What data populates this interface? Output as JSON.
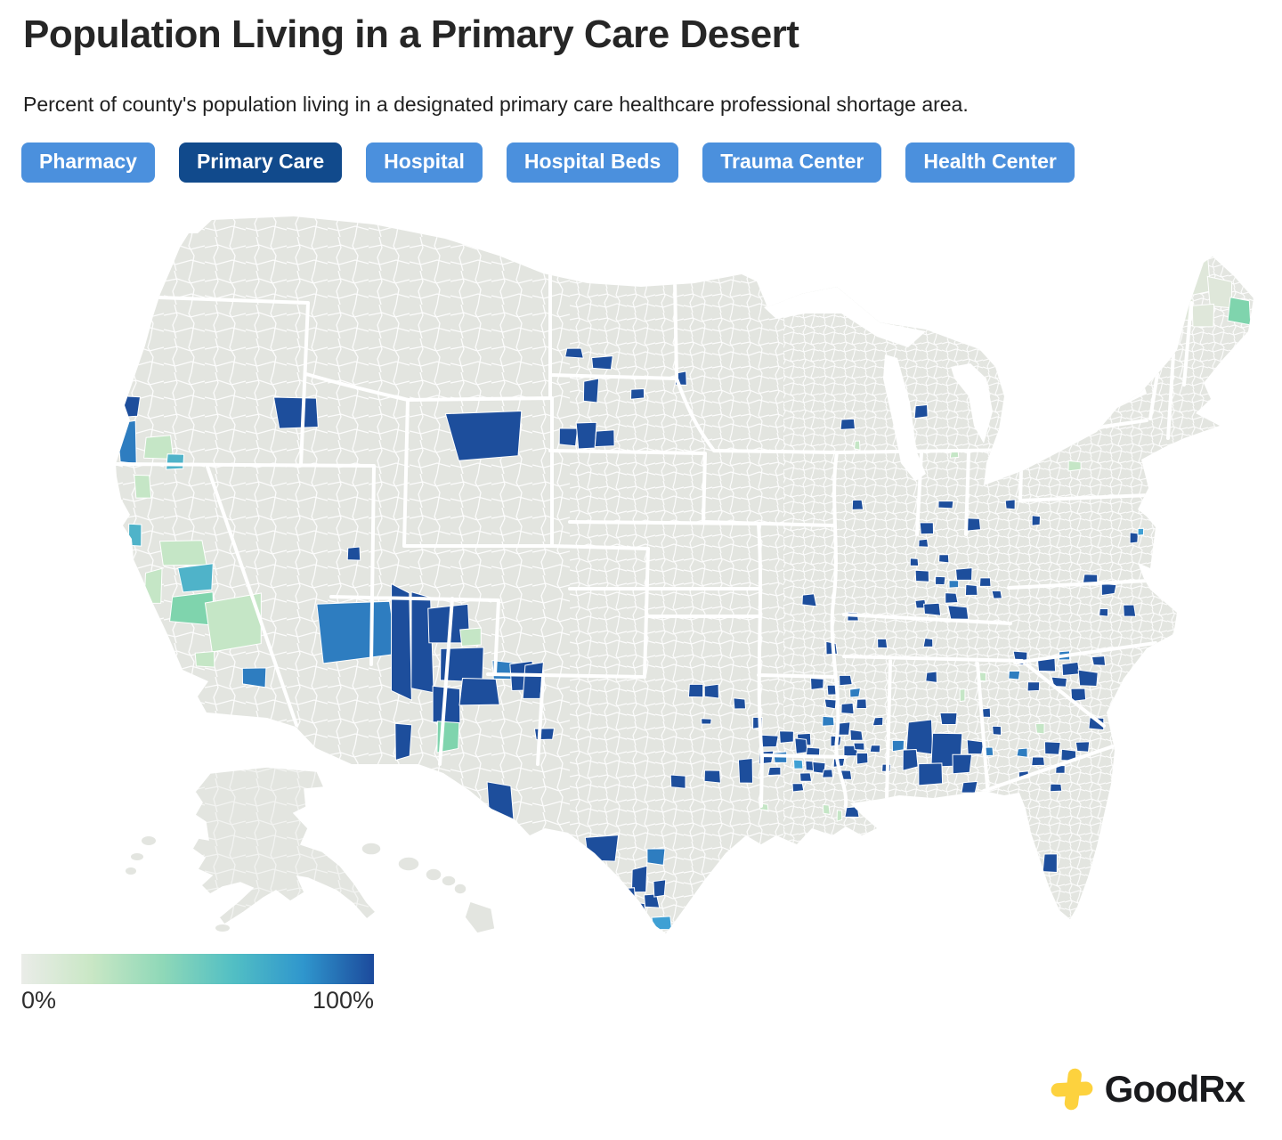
{
  "header": {
    "title": "Population Living in a Primary Care Desert",
    "subtitle": "Percent of county's population living in a designated primary care healthcare professional shortage area."
  },
  "filters": {
    "buttons": [
      {
        "label": "Pharmacy",
        "selected": false
      },
      {
        "label": "Primary Care",
        "selected": true
      },
      {
        "label": "Hospital",
        "selected": false
      },
      {
        "label": "Hospital Beds",
        "selected": false
      },
      {
        "label": "Trauma Center",
        "selected": false
      },
      {
        "label": "Health Center",
        "selected": false
      }
    ]
  },
  "legend": {
    "min_label": "0%",
    "max_label": "100%",
    "gradient": [
      "#eaece8",
      "#c9e7c5",
      "#8fd8b8",
      "#52bfc4",
      "#2f96cd",
      "#1c4a9c"
    ]
  },
  "footer": {
    "brand": "GoodRx"
  },
  "colors": {
    "button_blue": "#4b90dd",
    "button_selected_blue": "#114a8c",
    "map_base_gray": "#e3e5e0",
    "county_border_white": "#ffffff",
    "brand_yellow": "#fdd23e",
    "title_text": "#262626"
  },
  "map": {
    "palette": {
      "d": "#1d4e9c",
      "m": "#2e7dc0",
      "l": "#3fa0d4",
      "t": "#4fb3c9",
      "q": "#7fd4ad",
      "p": "#c5e6c6",
      "f": "#dfe7da"
    },
    "counties": [
      [
        148,
        457,
        16,
        24,
        "d"
      ],
      [
        143,
        496,
        20,
        44,
        "m"
      ],
      [
        177,
        503,
        30,
        26,
        "p"
      ],
      [
        197,
        518,
        18,
        18,
        "t"
      ],
      [
        160,
        548,
        16,
        26,
        "p"
      ],
      [
        151,
        602,
        13,
        26,
        "t"
      ],
      [
        205,
        622,
        50,
        26,
        "p"
      ],
      [
        222,
        650,
        38,
        30,
        "t"
      ],
      [
        218,
        684,
        48,
        34,
        "q"
      ],
      [
        268,
        700,
        62,
        58,
        "p"
      ],
      [
        173,
        658,
        18,
        34,
        "p"
      ],
      [
        286,
        760,
        30,
        20,
        "m"
      ],
      [
        231,
        741,
        20,
        16,
        "p"
      ],
      [
        333,
        464,
        44,
        36,
        "d"
      ],
      [
        547,
        489,
        78,
        54,
        "d"
      ],
      [
        397,
        622,
        15,
        14,
        "d"
      ],
      [
        405,
        706,
        82,
        64,
        "m"
      ],
      [
        449,
        722,
        24,
        112,
        "d"
      ],
      [
        474,
        720,
        22,
        106,
        "d"
      ],
      [
        505,
        700,
        40,
        36,
        "d"
      ],
      [
        528,
        716,
        22,
        18,
        "p"
      ],
      [
        516,
        748,
        52,
        38,
        "d"
      ],
      [
        500,
        790,
        28,
        40,
        "d"
      ],
      [
        540,
        777,
        42,
        32,
        "d"
      ],
      [
        566,
        752,
        26,
        18,
        "m"
      ],
      [
        586,
        758,
        28,
        30,
        "d"
      ],
      [
        599,
        764,
        20,
        40,
        "d"
      ],
      [
        612,
        824,
        20,
        14,
        "d"
      ],
      [
        453,
        830,
        17,
        40,
        "d"
      ],
      [
        503,
        828,
        22,
        30,
        "q"
      ],
      [
        562,
        903,
        27,
        44,
        "d"
      ],
      [
        676,
        953,
        32,
        30,
        "d"
      ],
      [
        737,
        962,
        20,
        17,
        "m"
      ],
      [
        718,
        988,
        16,
        26,
        "d"
      ],
      [
        701,
        1008,
        24,
        22,
        "d"
      ],
      [
        714,
        1021,
        18,
        16,
        "d"
      ],
      [
        731,
        1011,
        16,
        14,
        "d"
      ],
      [
        741,
        997,
        13,
        17,
        "d"
      ],
      [
        744,
        1036,
        20,
        15,
        "l"
      ],
      [
        762,
        877,
        16,
        14,
        "d"
      ],
      [
        801,
        872,
        18,
        13,
        "d"
      ],
      [
        838,
        867,
        16,
        26,
        "d"
      ],
      [
        645,
        396,
        17,
        12,
        "d"
      ],
      [
        676,
        407,
        21,
        13,
        "d"
      ],
      [
        663,
        439,
        16,
        24,
        "d"
      ],
      [
        716,
        442,
        18,
        11,
        "d"
      ],
      [
        765,
        425,
        12,
        15,
        "d"
      ],
      [
        637,
        491,
        20,
        20,
        "d"
      ],
      [
        658,
        487,
        20,
        28,
        "d"
      ],
      [
        679,
        492,
        22,
        18,
        "d"
      ],
      [
        952,
        476,
        15,
        11,
        "d"
      ],
      [
        1035,
        462,
        15,
        13,
        "d"
      ],
      [
        963,
        500,
        6,
        9,
        "p"
      ],
      [
        1062,
        566,
        15,
        8,
        "d"
      ],
      [
        1072,
        509,
        8,
        9,
        "p"
      ],
      [
        1113,
        529,
        7,
        9,
        "p"
      ],
      [
        1208,
        523,
        14,
        10,
        "p"
      ],
      [
        963,
        567,
        12,
        11,
        "d"
      ],
      [
        1041,
        593,
        13,
        11,
        "d"
      ],
      [
        1092,
        589,
        18,
        14,
        "d"
      ],
      [
        1135,
        567,
        11,
        10,
        "d"
      ],
      [
        1163,
        585,
        9,
        11,
        "d"
      ],
      [
        1037,
        610,
        11,
        9,
        "d"
      ],
      [
        908,
        674,
        16,
        12,
        "d"
      ],
      [
        934,
        728,
        12,
        13,
        "d"
      ],
      [
        1027,
        631,
        9,
        8,
        "d"
      ],
      [
        1060,
        627,
        10,
        8,
        "d"
      ],
      [
        1035,
        647,
        15,
        13,
        "d"
      ],
      [
        1056,
        652,
        11,
        9,
        "d"
      ],
      [
        1082,
        645,
        17,
        13,
        "d"
      ],
      [
        1091,
        662,
        14,
        11,
        "d"
      ],
      [
        1068,
        671,
        13,
        11,
        "d"
      ],
      [
        1034,
        678,
        11,
        9,
        "d"
      ],
      [
        1046,
        684,
        18,
        12,
        "d"
      ],
      [
        1077,
        688,
        22,
        14,
        "d"
      ],
      [
        1107,
        653,
        11,
        9,
        "d"
      ],
      [
        1120,
        668,
        10,
        8,
        "d"
      ],
      [
        1072,
        656,
        10,
        8,
        "m"
      ],
      [
        958,
        692,
        11,
        9,
        "d"
      ],
      [
        991,
        722,
        11,
        10,
        "d"
      ],
      [
        1043,
        722,
        10,
        9,
        "d"
      ],
      [
        1047,
        760,
        12,
        11,
        "d"
      ],
      [
        1081,
        780,
        6,
        13,
        "p"
      ],
      [
        1274,
        604,
        9,
        12,
        "d"
      ],
      [
        1281,
        597,
        6,
        8,
        "l"
      ],
      [
        1224,
        650,
        15,
        12,
        "d"
      ],
      [
        1245,
        662,
        15,
        11,
        "d"
      ],
      [
        1268,
        685,
        13,
        13,
        "d"
      ],
      [
        1240,
        688,
        9,
        8,
        "d"
      ],
      [
        1147,
        739,
        15,
        13,
        "d"
      ],
      [
        1174,
        746,
        19,
        15,
        "d"
      ],
      [
        1203,
        751,
        17,
        13,
        "d"
      ],
      [
        1222,
        762,
        21,
        17,
        "d"
      ],
      [
        1190,
        766,
        15,
        11,
        "d"
      ],
      [
        1160,
        771,
        13,
        11,
        "d"
      ],
      [
        1211,
        780,
        15,
        13,
        "d"
      ],
      [
        1234,
        742,
        13,
        11,
        "d"
      ],
      [
        1139,
        758,
        11,
        9,
        "m"
      ],
      [
        1196,
        736,
        12,
        10,
        "m"
      ],
      [
        1168,
        818,
        9,
        11,
        "p"
      ],
      [
        1148,
        845,
        11,
        9,
        "m"
      ],
      [
        1181,
        840,
        17,
        13,
        "d"
      ],
      [
        1201,
        848,
        15,
        11,
        "d"
      ],
      [
        1166,
        855,
        13,
        9,
        "d"
      ],
      [
        1191,
        864,
        11,
        9,
        "d"
      ],
      [
        1216,
        838,
        13,
        11,
        "d"
      ],
      [
        1231,
        812,
        15,
        13,
        "d"
      ],
      [
        1186,
        884,
        12,
        9,
        "d"
      ],
      [
        1150,
        870,
        10,
        8,
        "d"
      ],
      [
        1035,
        828,
        28,
        38,
        "d"
      ],
      [
        1062,
        843,
        34,
        42,
        "d"
      ],
      [
        1046,
        869,
        24,
        22,
        "d"
      ],
      [
        1081,
        858,
        21,
        18,
        "d"
      ],
      [
        1021,
        853,
        17,
        20,
        "d"
      ],
      [
        1096,
        839,
        17,
        14,
        "d"
      ],
      [
        1009,
        837,
        13,
        11,
        "m"
      ],
      [
        1066,
        808,
        19,
        14,
        "d"
      ],
      [
        1089,
        884,
        15,
        11,
        "d"
      ],
      [
        1110,
        844,
        12,
        10,
        "m"
      ],
      [
        1120,
        820,
        11,
        9,
        "d"
      ],
      [
        1108,
        800,
        10,
        9,
        "d"
      ],
      [
        1090,
        905,
        9,
        7,
        "p"
      ],
      [
        1104,
        760,
        7,
        9,
        "p"
      ],
      [
        782,
        775,
        16,
        13,
        "d"
      ],
      [
        800,
        776,
        18,
        14,
        "d"
      ],
      [
        831,
        790,
        12,
        11,
        "d"
      ],
      [
        794,
        810,
        11,
        7,
        "d"
      ],
      [
        851,
        812,
        10,
        11,
        "d"
      ],
      [
        865,
        832,
        17,
        14,
        "d"
      ],
      [
        884,
        828,
        15,
        12,
        "d"
      ],
      [
        903,
        830,
        14,
        12,
        "d"
      ],
      [
        860,
        850,
        15,
        13,
        "d"
      ],
      [
        877,
        850,
        16,
        11,
        "m"
      ],
      [
        870,
        866,
        13,
        10,
        "d"
      ],
      [
        910,
        860,
        12,
        10,
        "d"
      ],
      [
        900,
        838,
        13,
        16,
        "d"
      ],
      [
        913,
        845,
        14,
        12,
        "d"
      ],
      [
        920,
        862,
        13,
        11,
        "d"
      ],
      [
        905,
        872,
        12,
        10,
        "d"
      ],
      [
        896,
        884,
        11,
        9,
        "d"
      ],
      [
        896,
        858,
        10,
        9,
        "l"
      ],
      [
        918,
        768,
        13,
        11,
        "d"
      ],
      [
        936,
        775,
        12,
        10,
        "d"
      ],
      [
        950,
        764,
        13,
        11,
        "d"
      ],
      [
        933,
        790,
        12,
        10,
        "d"
      ],
      [
        952,
        796,
        13,
        11,
        "d"
      ],
      [
        968,
        790,
        12,
        10,
        "d"
      ],
      [
        960,
        778,
        11,
        9,
        "m"
      ],
      [
        930,
        810,
        12,
        10,
        "m"
      ],
      [
        948,
        818,
        14,
        12,
        "d"
      ],
      [
        962,
        826,
        13,
        11,
        "d"
      ],
      [
        938,
        832,
        12,
        10,
        "d"
      ],
      [
        955,
        843,
        15,
        12,
        "d"
      ],
      [
        968,
        852,
        13,
        11,
        "d"
      ],
      [
        942,
        856,
        12,
        10,
        "d"
      ],
      [
        930,
        868,
        11,
        9,
        "d"
      ],
      [
        950,
        870,
        12,
        10,
        "d"
      ],
      [
        965,
        838,
        11,
        9,
        "d"
      ],
      [
        983,
        841,
        10,
        8,
        "d"
      ],
      [
        995,
        862,
        9,
        8,
        "d"
      ],
      [
        987,
        810,
        11,
        9,
        "d"
      ],
      [
        957,
        912,
        14,
        11,
        "d"
      ],
      [
        858,
        906,
        9,
        7,
        "p"
      ],
      [
        928,
        909,
        7,
        9,
        "p"
      ],
      [
        943,
        916,
        6,
        11,
        "p"
      ],
      [
        1179,
        970,
        15,
        20,
        "d"
      ],
      [
        1344,
        310,
        26,
        38,
        "f"
      ],
      [
        1369,
        330,
        24,
        34,
        "f"
      ],
      [
        1352,
        354,
        22,
        26,
        "f"
      ],
      [
        1392,
        349,
        22,
        28,
        "q"
      ],
      [
        1330,
        346,
        18,
        24,
        "f"
      ]
    ]
  }
}
